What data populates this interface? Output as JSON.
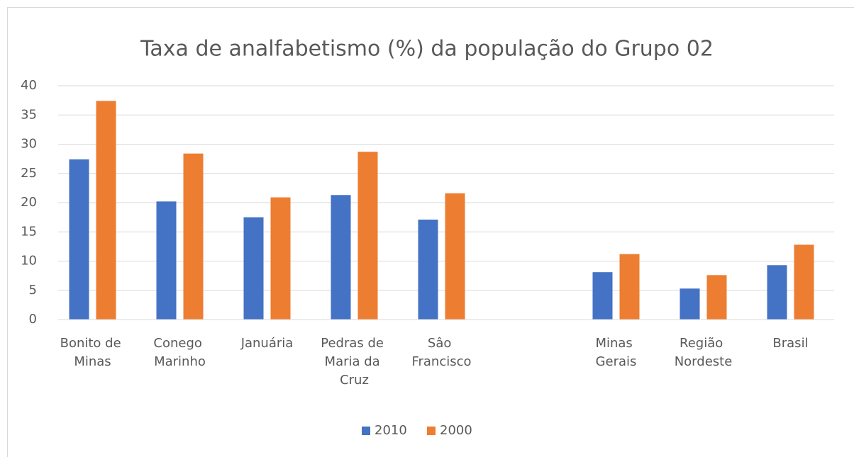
{
  "chart_data": {
    "type": "bar",
    "title": "Taxa de analfabetismo (%) da população do Grupo 02",
    "categories": [
      "Bonito de Minas",
      "Conego Marinho",
      "Januária",
      "Pedras de Maria da Cruz",
      "Sâo Francisco",
      null,
      "Minas Gerais",
      "Região Nordeste",
      "Brasil"
    ],
    "series": [
      {
        "name": "2010",
        "color": "#4472c4",
        "values": [
          27.4,
          20.2,
          17.5,
          21.3,
          17.1,
          null,
          8.1,
          5.3,
          9.3
        ]
      },
      {
        "name": "2000",
        "color": "#ed7d31",
        "values": [
          37.4,
          28.4,
          20.9,
          28.7,
          21.6,
          null,
          11.2,
          7.6,
          12.8
        ]
      }
    ],
    "ylim": [
      0,
      40
    ],
    "yticks": [
      0,
      5,
      10,
      15,
      20,
      25,
      30,
      35,
      40
    ],
    "grid": true,
    "legend": "bottom"
  }
}
